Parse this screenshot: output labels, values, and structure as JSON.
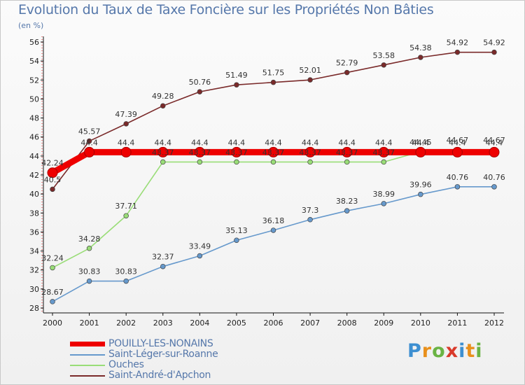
{
  "chart_data": {
    "type": "line",
    "title": "Evolution du Taux de Taxe Foncière sur les Propriétés Non Bâties",
    "ylabel": "(en %)",
    "xlabel": "",
    "categories": [
      "2000",
      "2001",
      "2002",
      "2003",
      "2004",
      "2005",
      "2006",
      "2007",
      "2008",
      "2009",
      "2010",
      "2011",
      "2012"
    ],
    "ylim": [
      28,
      56
    ],
    "yticks": [
      28,
      30,
      32,
      34,
      36,
      38,
      40,
      42,
      44,
      46,
      48,
      50,
      52,
      54,
      56
    ],
    "grid": false,
    "series": [
      {
        "name": "Saint-André-d'Apchon",
        "color": "#7a2a2a",
        "values": [
          40.5,
          45.57,
          47.39,
          49.28,
          50.76,
          51.49,
          51.75,
          52.01,
          52.79,
          53.58,
          54.38,
          54.92,
          54.92
        ],
        "labels": [
          "40.5",
          "45.57",
          "47.39",
          "49.28",
          "50.76",
          "51.49",
          "51.75",
          "52.01",
          "52.79",
          "53.58",
          "54.38",
          "54.92",
          "54.92"
        ]
      },
      {
        "name": "Ouches",
        "color": "#99dd77",
        "values": [
          32.24,
          34.28,
          37.71,
          43.37,
          43.37,
          43.37,
          43.37,
          43.37,
          43.37,
          43.37,
          44.45,
          44.67,
          44.67
        ],
        "labels": [
          "32.24",
          "34.28",
          "37.71",
          "43.37",
          "43.37",
          "43.37",
          "43.37",
          "43.37",
          "43.37",
          "43.37",
          "44.45",
          "44.67",
          "44.67"
        ]
      },
      {
        "name": "Saint-Léger-sur-Roanne",
        "color": "#6699cc",
        "values": [
          28.67,
          30.83,
          30.83,
          32.37,
          33.49,
          35.13,
          36.18,
          37.3,
          38.23,
          38.99,
          39.96,
          40.76,
          40.76
        ],
        "labels": [
          "28.67",
          "30.83",
          "30.83",
          "32.37",
          "33.49",
          "35.13",
          "36.18",
          "37.3",
          "38.23",
          "38.99",
          "39.96",
          "40.76",
          "40.76"
        ]
      },
      {
        "name": "POUILLY-LES-NONAINS",
        "color": "#ee0000",
        "values": [
          42.24,
          44.4,
          44.4,
          44.4,
          44.4,
          44.4,
          44.4,
          44.4,
          44.4,
          44.4,
          44.4,
          44.4,
          44.4
        ],
        "labels": [
          "42.24",
          "44.4",
          "44.4",
          "44.4",
          "44.4",
          "44.4",
          "44.4",
          "44.4",
          "44.4",
          "44.4",
          "44.4",
          "44.4",
          "44.4"
        ]
      }
    ],
    "legend": [
      "POUILLY-LES-NONAINS",
      "Saint-Léger-sur-Roanne",
      "Ouches",
      "Saint-André-d'Apchon"
    ],
    "legend_position": "bottom-left"
  },
  "logo": {
    "letters": [
      "P",
      "r",
      "o",
      "x",
      "i",
      "t",
      "i"
    ],
    "colors": [
      "#3d8fd1",
      "#e8901c",
      "#6ab344",
      "#d93a2b",
      "#3d8fd1",
      "#e8901c",
      "#6ab344"
    ]
  }
}
